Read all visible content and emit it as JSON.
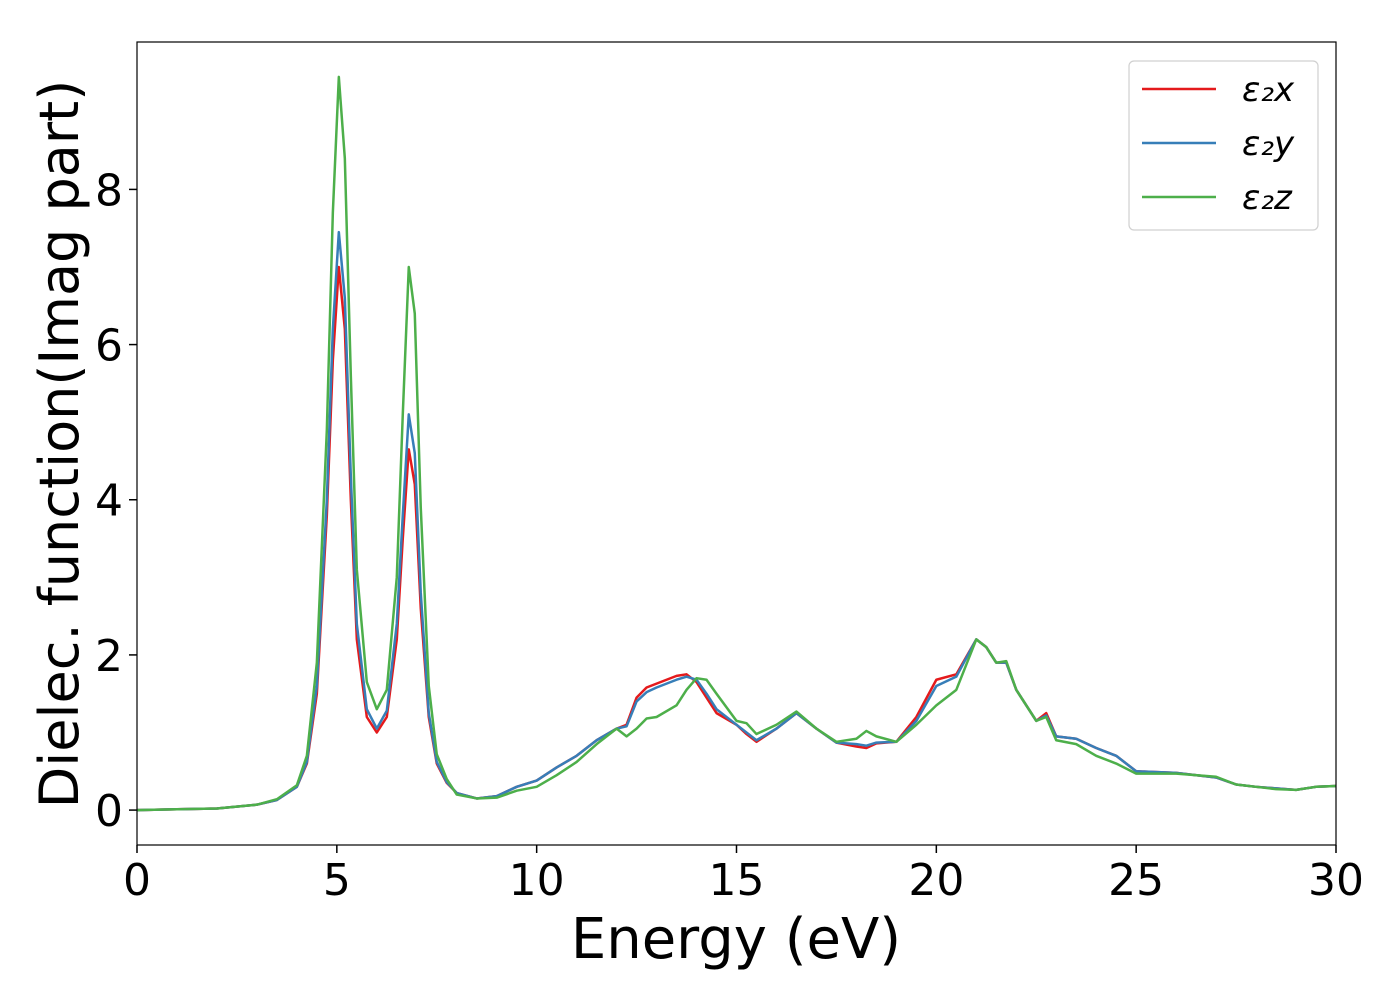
{
  "chart_data": {
    "type": "line",
    "x_label": "Energy (eV)",
    "y_label": "Dielec. function(Imag part)",
    "x": [
      0,
      1,
      2,
      3,
      3.5,
      4,
      4.25,
      4.5,
      4.75,
      4.9,
      5.05,
      5.2,
      5.35,
      5.5,
      5.75,
      6,
      6.25,
      6.5,
      6.65,
      6.8,
      6.95,
      7.1,
      7.3,
      7.5,
      7.75,
      8,
      8.5,
      9,
      9.5,
      10,
      10.5,
      11,
      11.5,
      12,
      12.25,
      12.5,
      12.75,
      13,
      13.5,
      13.75,
      14,
      14.25,
      14.5,
      15,
      15.25,
      15.5,
      16,
      16.5,
      17,
      17.5,
      18,
      18.25,
      18.5,
      19,
      19.5,
      20,
      20.5,
      21,
      21.25,
      21.5,
      21.75,
      22,
      22.5,
      22.75,
      23,
      23.5,
      24,
      24.5,
      25,
      26,
      27,
      27.5,
      28,
      28.5,
      29,
      29.5,
      30
    ],
    "series": [
      {
        "name": "ε₂x",
        "color": "#e41a1c",
        "values": [
          0,
          0.01,
          0.02,
          0.07,
          0.13,
          0.3,
          0.6,
          1.5,
          3.8,
          5.8,
          7.0,
          6.2,
          4.0,
          2.2,
          1.2,
          1.0,
          1.2,
          2.2,
          3.5,
          4.65,
          4.2,
          2.6,
          1.2,
          0.6,
          0.35,
          0.22,
          0.15,
          0.18,
          0.3,
          0.38,
          0.55,
          0.7,
          0.9,
          1.05,
          1.1,
          1.45,
          1.58,
          1.63,
          1.73,
          1.75,
          1.65,
          1.45,
          1.25,
          1.1,
          0.98,
          0.88,
          1.05,
          1.25,
          1.05,
          0.87,
          0.82,
          0.8,
          0.86,
          0.88,
          1.2,
          1.68,
          1.75,
          2.2,
          2.1,
          1.9,
          1.9,
          1.55,
          1.15,
          1.25,
          0.95,
          0.92,
          0.8,
          0.7,
          0.5,
          0.48,
          0.42,
          0.33,
          0.3,
          0.28,
          0.26,
          0.3,
          0.31
        ]
      },
      {
        "name": "ε₂y",
        "color": "#377eb8",
        "values": [
          0,
          0.01,
          0.02,
          0.07,
          0.13,
          0.3,
          0.62,
          1.6,
          4.0,
          6.2,
          7.45,
          6.6,
          4.3,
          2.4,
          1.3,
          1.05,
          1.28,
          2.4,
          3.8,
          5.1,
          4.6,
          2.8,
          1.25,
          0.62,
          0.36,
          0.22,
          0.15,
          0.18,
          0.3,
          0.38,
          0.55,
          0.7,
          0.9,
          1.05,
          1.08,
          1.4,
          1.52,
          1.58,
          1.68,
          1.72,
          1.68,
          1.5,
          1.3,
          1.1,
          1.0,
          0.9,
          1.05,
          1.25,
          1.05,
          0.87,
          0.85,
          0.83,
          0.87,
          0.88,
          1.15,
          1.6,
          1.72,
          2.2,
          2.1,
          1.9,
          1.9,
          1.55,
          1.15,
          1.22,
          0.95,
          0.92,
          0.8,
          0.7,
          0.5,
          0.48,
          0.42,
          0.33,
          0.3,
          0.28,
          0.26,
          0.3,
          0.31
        ]
      },
      {
        "name": "ε₂z",
        "color": "#4daf4a",
        "values": [
          0,
          0.01,
          0.02,
          0.07,
          0.14,
          0.32,
          0.7,
          1.9,
          4.9,
          7.7,
          9.45,
          8.4,
          5.6,
          3.1,
          1.65,
          1.3,
          1.55,
          3.0,
          5.1,
          7.0,
          6.4,
          3.9,
          1.6,
          0.72,
          0.4,
          0.2,
          0.15,
          0.16,
          0.25,
          0.3,
          0.45,
          0.62,
          0.85,
          1.05,
          0.95,
          1.05,
          1.18,
          1.2,
          1.35,
          1.55,
          1.7,
          1.68,
          1.5,
          1.15,
          1.12,
          0.98,
          1.1,
          1.27,
          1.05,
          0.88,
          0.92,
          1.02,
          0.95,
          0.88,
          1.1,
          1.35,
          1.55,
          2.2,
          2.1,
          1.9,
          1.92,
          1.55,
          1.15,
          1.2,
          0.9,
          0.85,
          0.7,
          0.6,
          0.47,
          0.47,
          0.43,
          0.33,
          0.3,
          0.27,
          0.26,
          0.3,
          0.31
        ]
      }
    ],
    "xlim": [
      0,
      30
    ],
    "xticks": [
      0,
      5,
      10,
      15,
      20,
      25,
      30
    ],
    "ylim": [
      -0.45,
      9.9
    ],
    "yticks": [
      0,
      2,
      4,
      6,
      8
    ],
    "legend": "upper right",
    "grid": false
  }
}
